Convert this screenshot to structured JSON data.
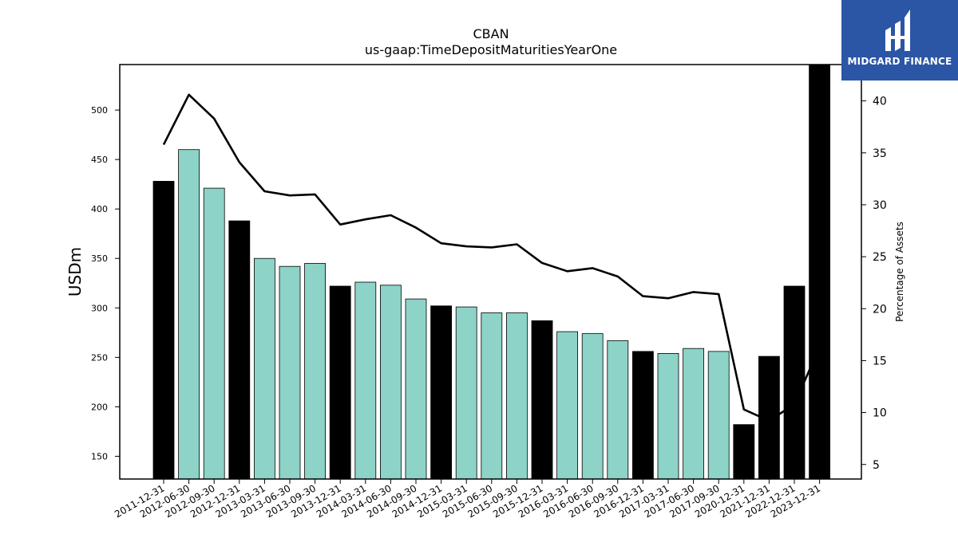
{
  "brand": {
    "name": "MIDGARD FINANCE",
    "color": "#2b56a6"
  },
  "chart_data": {
    "type": "bar",
    "title": "CBAN",
    "subtitle": "us-gaap:TimeDepositMaturitiesYearOne",
    "ylabel": "USDm",
    "y2label": "Percentage of Assets",
    "ylim": [
      127,
      546
    ],
    "y2lim": [
      3.6,
      43.5
    ],
    "yticks": [
      150,
      200,
      250,
      300,
      350,
      400,
      450,
      500
    ],
    "y2ticks": [
      5,
      10,
      15,
      20,
      25,
      30,
      35,
      40
    ],
    "categories": [
      "2011-12-31",
      "2012-06-30",
      "2012-09-30",
      "2012-12-31",
      "2013-03-31",
      "2013-06-30",
      "2013-09-30",
      "2013-12-31",
      "2014-03-31",
      "2014-06-30",
      "2014-09-30",
      "2014-12-31",
      "2015-03-31",
      "2015-06-30",
      "2015-09-30",
      "2015-12-31",
      "2016-03-31",
      "2016-06-30",
      "2016-09-30",
      "2016-12-31",
      "2017-03-31",
      "2017-06-30",
      "2017-09-30",
      "2020-12-31",
      "2021-12-31",
      "2022-12-31",
      "2023-12-31"
    ],
    "series": [
      {
        "kind": "bar",
        "axis": "left",
        "values": [
          428,
          460,
          421,
          388,
          350,
          342,
          345,
          322,
          326,
          323,
          309,
          302,
          301,
          295,
          295,
          287,
          276,
          274,
          267,
          256,
          254,
          259,
          256,
          182,
          251,
          322,
          546
        ],
        "year_end": [
          true,
          false,
          false,
          true,
          false,
          false,
          false,
          true,
          false,
          false,
          false,
          true,
          false,
          false,
          false,
          true,
          false,
          false,
          false,
          true,
          false,
          false,
          false,
          true,
          true,
          true,
          true
        ]
      },
      {
        "kind": "line",
        "axis": "right",
        "values": [
          35.8,
          40.6,
          38.3,
          34.1,
          31.3,
          30.9,
          31.0,
          28.1,
          28.6,
          29.0,
          27.8,
          26.3,
          26.0,
          25.9,
          26.2,
          24.4,
          23.6,
          23.9,
          23.1,
          21.2,
          21.0,
          21.6,
          21.4,
          10.3,
          9.2,
          10.8,
          16.3
        ]
      }
    ],
    "colors": {
      "year_end_bar": "#000000",
      "quarter_bar": "#8dd3c7",
      "line": "#000000"
    },
    "grid": false,
    "legend": "none"
  }
}
